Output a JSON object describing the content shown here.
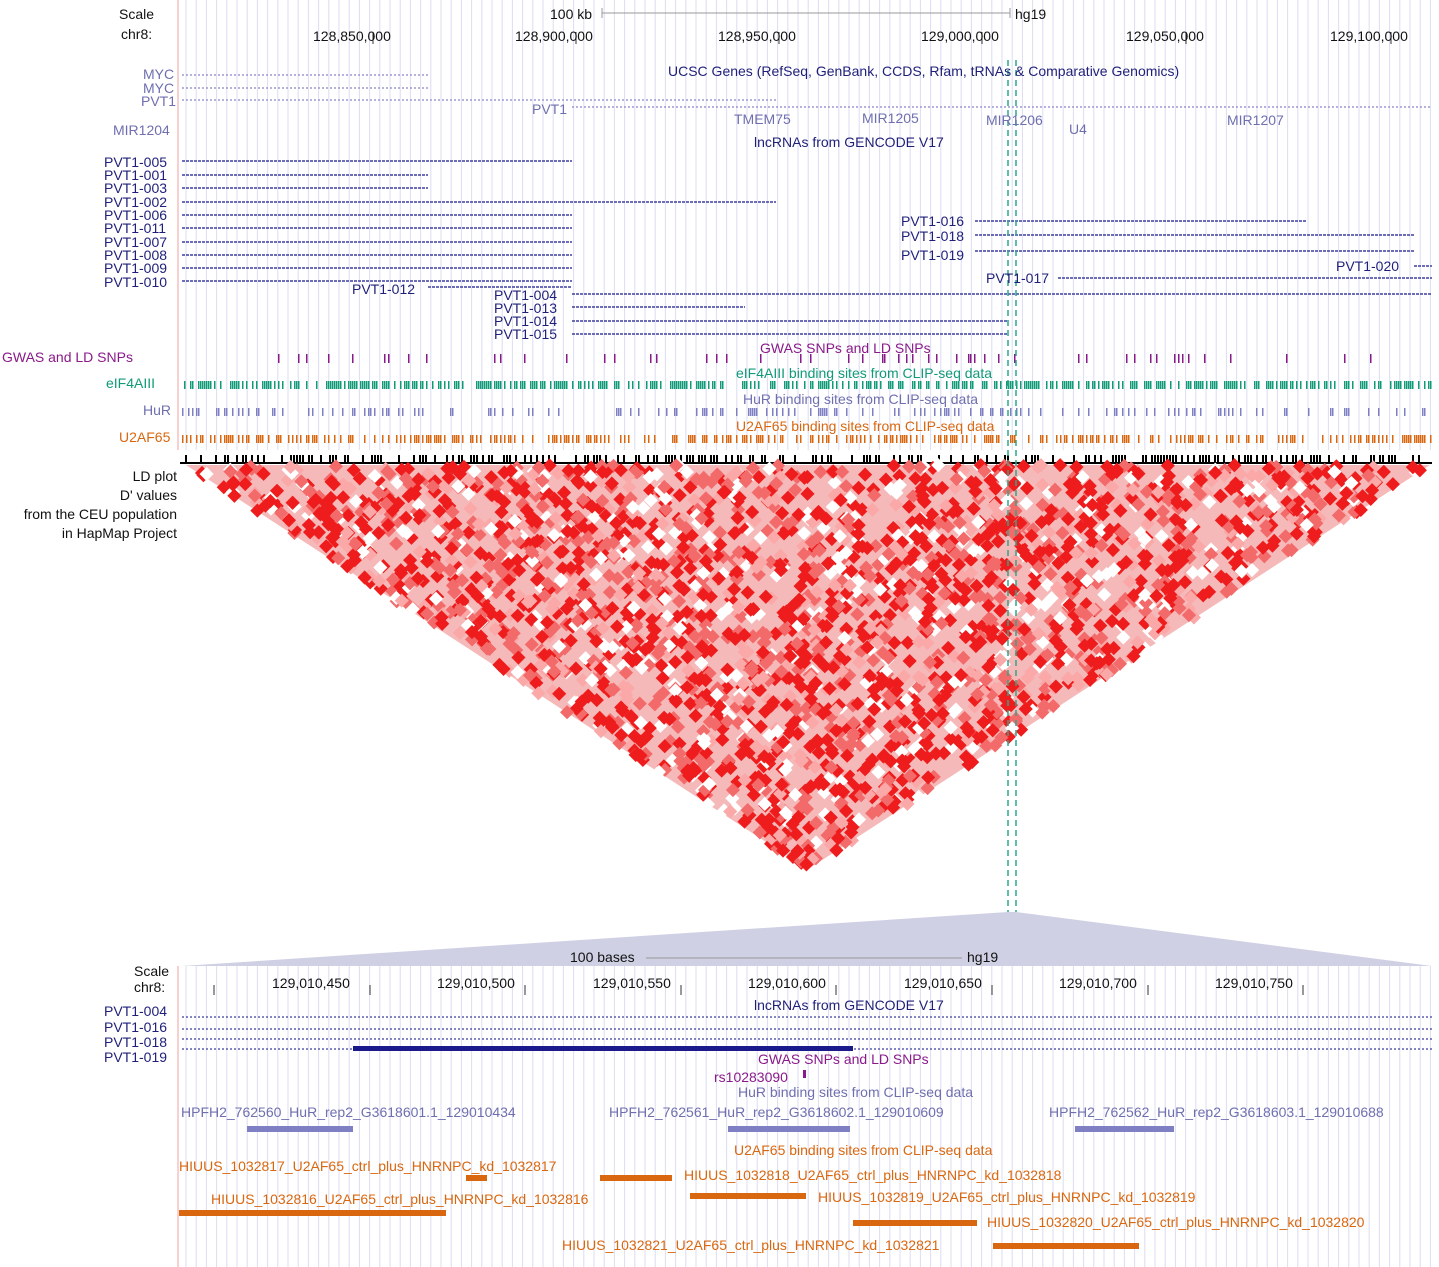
{
  "top_panel": {
    "scale_label": "Scale",
    "chrom_label": "chr8:",
    "scale_bar_text": "100 kb",
    "assembly": "hg19",
    "coordinates": [
      "128,850,000",
      "128,900,000",
      "128,950,000",
      "129,000,000",
      "129,050,000",
      "129,100,000"
    ],
    "ucsc_track_title": "UCSC Genes (RefSeq, GenBank, CCDS, Rfam, tRNAs & Comparative Genomics)",
    "ucsc_genes": [
      "MYC",
      "MYC",
      "PVT1",
      "PVT1",
      "MIR1204",
      "TMEM75",
      "MIR1205",
      "MIR1206",
      "U4",
      "MIR1207"
    ],
    "lnc_track_title": "lncRNAs from GENCODE V17",
    "transcripts": [
      "PVT1-005",
      "PVT1-001",
      "PVT1-003",
      "PVT1-002",
      "PVT1-006",
      "PVT1-011",
      "PVT1-007",
      "PVT1-008",
      "PVT1-009",
      "PVT1-010",
      "PVT1-012",
      "PVT1-004",
      "PVT1-013",
      "PVT1-014",
      "PVT1-015",
      "PVT1-016",
      "PVT1-018",
      "PVT1-019",
      "PVT1-017",
      "PVT1-020"
    ],
    "tracks": {
      "gwas": {
        "label": "GWAS and LD SNPs",
        "title": "GWAS SNPs and LD SNPs",
        "color": "#8a1a8a"
      },
      "eif4a3": {
        "label": "eIF4AIII",
        "title": "eIF4AIII binding sites from CLIP-seq data",
        "color": "#119a78"
      },
      "hur": {
        "label": "HuR",
        "title": "HuR binding sites from CLIP-seq data",
        "color": "#7f7fc4"
      },
      "u2af65": {
        "label": "U2AF65",
        "title": "U2AF65 binding sites from CLIP-seq data",
        "color": "#d9670f"
      }
    },
    "ld_label": [
      "LD plot",
      "D' values",
      "from the CEU population",
      "in HapMap Project"
    ]
  },
  "bottom_panel": {
    "scale_label": "Scale",
    "chrom_label": "chr8:",
    "scale_bar_text": "100 bases",
    "assembly": "hg19",
    "coordinates": [
      "129,010,450",
      "129,010,500",
      "129,010,550",
      "129,010,600",
      "129,010,650",
      "129,010,700",
      "129,010,750"
    ],
    "lnc_track_title": "lncRNAs from GENCODE V17",
    "transcripts": [
      "PVT1-004",
      "PVT1-016",
      "PVT1-018",
      "PVT1-019"
    ],
    "gwas_title": "GWAS SNPs and LD SNPs",
    "snp": "rs10283090",
    "hur_title": "HuR binding sites from CLIP-seq data",
    "hur_features": [
      "HPFH2_762560_HuR_rep2_G3618601.1_129010434",
      "HPFH2_762561_HuR_rep2_G3618602.1_129010609",
      "HPFH2_762562_HuR_rep2_G3618603.1_129010688"
    ],
    "u2af65_title": "U2AF65 binding sites from CLIP-seq data",
    "u2af65_features": [
      "HIUUS_1032817_U2AF65_ctrl_plus_HNRNPC_kd_1032817",
      "HIUUS_1032818_U2AF65_ctrl_plus_HNRNPC_kd_1032818",
      "HIUUS_1032816_U2AF65_ctrl_plus_HNRNPC_kd_1032816",
      "HIUUS_1032819_U2AF65_ctrl_plus_HNRNPC_kd_1032819",
      "HIUUS_1032820_U2AF65_ctrl_plus_HNRNPC_kd_1032820",
      "HIUUS_1032821_U2AF65_ctrl_plus_HNRNPC_kd_1032821"
    ]
  }
}
